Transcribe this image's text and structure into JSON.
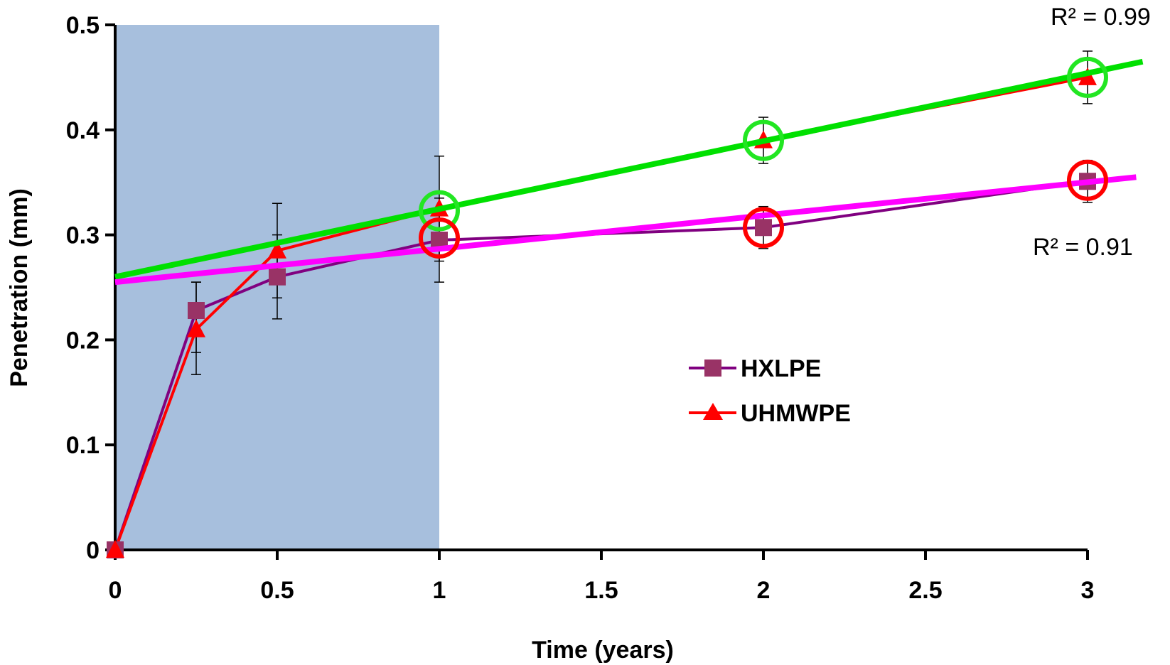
{
  "chart_data": {
    "type": "line",
    "title": "",
    "xlabel": "Time (years)",
    "ylabel": "Penetration (mm)",
    "xlim": [
      0,
      3
    ],
    "ylim": [
      0,
      0.5
    ],
    "x_ticks": [
      "0",
      "0.5",
      "1",
      "1.5",
      "2",
      "2.5",
      "3"
    ],
    "y_ticks": [
      "0",
      "0.1",
      "0.2",
      "0.3",
      "0.4",
      "0.5"
    ],
    "grid": false,
    "legend_position": "center-right",
    "shaded_region": {
      "x_from": 0,
      "x_to": 1,
      "color": "#a7bfdd"
    },
    "series": [
      {
        "name": "HXLPE",
        "color": "#800080",
        "marker_color": "#993366",
        "marker": "square",
        "x": [
          0,
          0.25,
          0.5,
          1,
          2,
          3
        ],
        "y": [
          0,
          0.228,
          0.26,
          0.295,
          0.307,
          0.351
        ],
        "error_low": [
          0,
          0.04,
          0.04,
          0.04,
          0.02,
          0.02
        ],
        "error_high": [
          0,
          0.027,
          0.04,
          0.04,
          0.02,
          0.02
        ]
      },
      {
        "name": "UHMWPE",
        "color": "#ff0000",
        "marker_color": "#ff0000",
        "marker": "triangle",
        "x": [
          0,
          0.25,
          0.5,
          1,
          2,
          3
        ],
        "y": [
          0,
          0.21,
          0.285,
          0.325,
          0.39,
          0.45
        ],
        "error_low": [
          0,
          0.043,
          0.045,
          0.05,
          0.022,
          0.025
        ],
        "error_high": [
          0,
          0.045,
          0.045,
          0.05,
          0.022,
          0.025
        ]
      }
    ],
    "trendlines": [
      {
        "color": "#00e000",
        "x_start": 0,
        "y_start": 0.26,
        "x_end": 3.17,
        "y_end": 0.465,
        "r2_label": "R² = 0.99",
        "circled_x": [
          1,
          2,
          3
        ],
        "circled_y": [
          0.323,
          0.39,
          0.45
        ],
        "circle_color": "#22e622"
      },
      {
        "color": "#ff00ff",
        "x_start": 0,
        "y_start": 0.255,
        "x_end": 3.15,
        "y_end": 0.355,
        "r2_label": "R² = 0.91",
        "circled_x": [
          1,
          2,
          3
        ],
        "circled_y": [
          0.297,
          0.307,
          0.352
        ],
        "circle_color": "#ff0000"
      }
    ]
  }
}
